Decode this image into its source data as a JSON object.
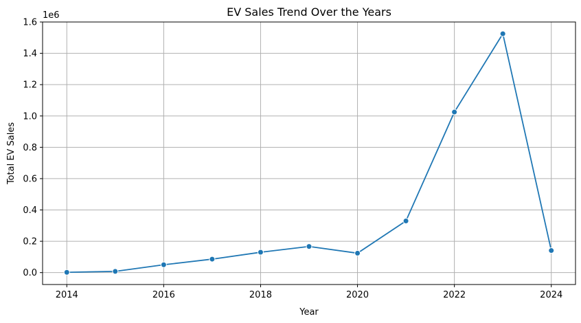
{
  "chart_data": {
    "type": "line",
    "title": "EV Sales Trend Over the Years",
    "xlabel": "Year",
    "ylabel": "Total EV Sales",
    "y_offset_label": "1e6",
    "x": [
      2014,
      2015,
      2016,
      2017,
      2018,
      2019,
      2020,
      2021,
      2022,
      2023,
      2024
    ],
    "series": [
      {
        "values": [
          2000,
          8000,
          50000,
          86000,
          130000,
          167000,
          124000,
          330000,
          1025000,
          1525000,
          141000
        ],
        "color": "#1f77b4",
        "marker": "circle"
      }
    ],
    "xticks": [
      2014,
      2016,
      2018,
      2020,
      2022,
      2024
    ],
    "xtick_labels": [
      "2014",
      "2016",
      "2018",
      "2020",
      "2022",
      "2024"
    ],
    "yticks": [
      0,
      200000,
      400000,
      600000,
      800000,
      1000000,
      1200000,
      1400000,
      1600000
    ],
    "ytick_labels": [
      "0.0",
      "0.2",
      "0.4",
      "0.6",
      "0.8",
      "1.0",
      "1.2",
      "1.4",
      "1.6"
    ],
    "xlim": [
      2013.5,
      2024.5
    ],
    "ylim": [
      -76000,
      1600000
    ],
    "grid": true,
    "legend": false
  }
}
